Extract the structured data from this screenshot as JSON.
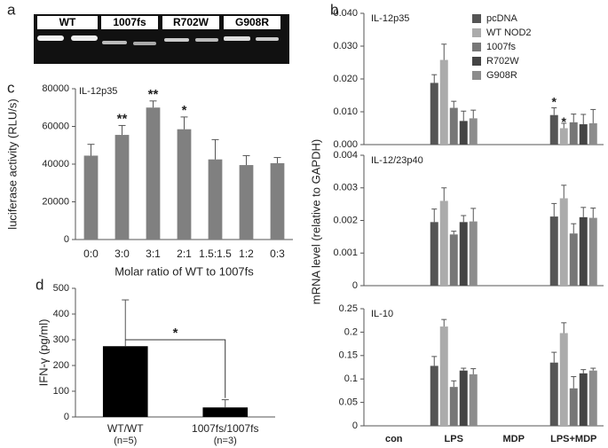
{
  "panel_labels": [
    "a",
    "b",
    "c",
    "d"
  ],
  "gel": {
    "lanes": [
      "WT",
      "1007fs",
      "R702W",
      "G908R"
    ]
  },
  "chart_data": [
    {
      "type": "bar",
      "panel": "c",
      "title": "IL-12p35",
      "ylabel": "luciferase activity (RLU/s)",
      "xlabel": "Molar ratio of WT to 1007fs",
      "categories": [
        "0:0",
        "3:0",
        "3:1",
        "2:1",
        "1.5:1.5",
        "1:2",
        "0:3"
      ],
      "values": [
        44500,
        55500,
        70000,
        58500,
        42500,
        39500,
        40500
      ],
      "errors": [
        6000,
        5000,
        3500,
        6500,
        10500,
        5000,
        3000
      ],
      "significance": [
        null,
        "**",
        "**",
        "*",
        null,
        null,
        null
      ],
      "color": "#808080",
      "ylim": [
        0,
        80000
      ],
      "yticks": [
        0,
        20000,
        40000,
        60000,
        80000
      ]
    },
    {
      "type": "bar",
      "panel": "d",
      "ylabel": "IFN-γ (pg/ml)",
      "categories": [
        "WT/WT",
        "1007fs/1007fs"
      ],
      "category_notes": [
        "(n=5)",
        "(n=3)"
      ],
      "values": [
        275,
        37
      ],
      "errors": [
        180,
        30
      ],
      "comparison": "*",
      "color": "#000000",
      "ylim": [
        0,
        500
      ],
      "yticks": [
        0,
        100,
        200,
        300,
        400,
        500
      ]
    },
    {
      "type": "grouped-bar-panels",
      "panel": "b",
      "ylabel": "mRNA level (relative to GAPDH)",
      "categories": [
        "con",
        "LPS",
        "MDP",
        "LPS+MDP"
      ],
      "series": [
        {
          "name": "pcDNA",
          "color": "#555555"
        },
        {
          "name": "WT NOD2",
          "color": "#ababab"
        },
        {
          "name": "1007fs",
          "color": "#777777"
        },
        {
          "name": "R702W",
          "color": "#444444"
        },
        {
          "name": "G908R",
          "color": "#8c8c8c"
        }
      ],
      "panels": [
        {
          "title": "IL-12p35",
          "ylim": [
            0,
            0.04
          ],
          "yticks": [
            {
              "value": 0,
              "label": "0.000"
            },
            {
              "value": 0.01,
              "label": "0.010"
            },
            {
              "value": 0.02,
              "label": "0.020"
            },
            {
              "value": 0.03,
              "label": "0.030"
            },
            {
              "value": 0.04,
              "label": "0.040"
            }
          ],
          "values": [
            [
              0,
              0.0188,
              0,
              0.009
            ],
            [
              0,
              0.0258,
              0,
              0.005
            ],
            [
              0,
              0.0112,
              0,
              0.0068
            ],
            [
              0,
              0.0072,
              0,
              0.0062
            ],
            [
              0,
              0.008,
              0,
              0.0065
            ]
          ],
          "errors": [
            [
              0,
              0.0025,
              0,
              0.0022
            ],
            [
              0,
              0.0048,
              0,
              0.0015
            ],
            [
              0,
              0.002,
              0,
              0.0025
            ],
            [
              0,
              0.003,
              0,
              0.003
            ],
            [
              0,
              0.0025,
              0,
              0.0042
            ]
          ],
          "significance": [
            [
              null,
              null,
              null,
              "*"
            ],
            [
              null,
              null,
              null,
              "*"
            ],
            [
              null,
              null,
              null,
              null
            ],
            [
              null,
              null,
              null,
              null
            ],
            [
              null,
              null,
              null,
              null
            ]
          ]
        },
        {
          "title": "IL-12/23p40",
          "ylim": [
            0,
            0.004
          ],
          "yticks": [
            0,
            0.001,
            0.002,
            0.003,
            0.004
          ],
          "values": [
            [
              0,
              0.00195,
              0,
              0.00212
            ],
            [
              0,
              0.0026,
              0,
              0.00268
            ],
            [
              0,
              0.00157,
              0,
              0.0016
            ],
            [
              0,
              0.00195,
              0,
              0.0021
            ],
            [
              0,
              0.00197,
              0,
              0.00208
            ]
          ],
          "errors": [
            [
              0,
              0.0004,
              0,
              0.0004
            ],
            [
              0,
              0.0004,
              0,
              0.0004
            ],
            [
              0,
              0.0001,
              0,
              0.0003
            ],
            [
              0,
              0.0002,
              0,
              0.0003
            ],
            [
              0,
              0.0004,
              0,
              0.0003
            ]
          ]
        },
        {
          "title": "IL-10",
          "ylim": [
            0,
            0.25
          ],
          "yticks": [
            0,
            0.05,
            0.1,
            0.15,
            0.2,
            0.25
          ],
          "values": [
            [
              0,
              0.128,
              0,
              0.135
            ],
            [
              0,
              0.212,
              0,
              0.198
            ],
            [
              0,
              0.083,
              0,
              0.08
            ],
            [
              0,
              0.118,
              0,
              0.112
            ],
            [
              0,
              0.11,
              0,
              0.118
            ]
          ],
          "errors": [
            [
              0,
              0.02,
              0,
              0.022
            ],
            [
              0,
              0.015,
              0,
              0.022
            ],
            [
              0,
              0.013,
              0,
              0.025
            ],
            [
              0,
              0.005,
              0,
              0.008
            ],
            [
              0,
              0.012,
              0,
              0.005
            ]
          ]
        }
      ]
    }
  ]
}
